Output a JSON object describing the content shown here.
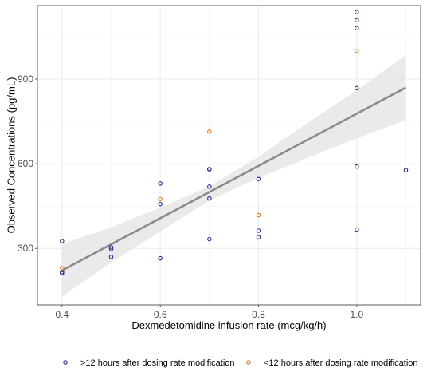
{
  "chart_data": {
    "type": "scatter",
    "title": "",
    "xlabel": "Dexmedetomidine infusion rate (mcg/kg/h)",
    "ylabel": "Observed Concentrations (pg/mL)",
    "xlim": [
      0.35,
      1.13
    ],
    "ylim": [
      100,
      1160
    ],
    "x_ticks": [
      0.4,
      0.6,
      0.8,
      1.0
    ],
    "x_tick_labels": [
      "0.4",
      "0.6",
      "0.8",
      "1.0"
    ],
    "y_ticks": [
      300,
      600,
      900
    ],
    "y_tick_labels": [
      "300",
      "600",
      "900"
    ],
    "grid": true,
    "legend_position": "bottom",
    "series": [
      {
        "name": ">12 hours after dosing rate modification",
        "color": "#2b2b8c",
        "points": [
          [
            0.4,
            326
          ],
          [
            0.4,
            216
          ],
          [
            0.4,
            212
          ],
          [
            0.5,
            304
          ],
          [
            0.5,
            298
          ],
          [
            0.5,
            270
          ],
          [
            0.6,
            530
          ],
          [
            0.6,
            457
          ],
          [
            0.6,
            265
          ],
          [
            0.7,
            581
          ],
          [
            0.7,
            580
          ],
          [
            0.7,
            519
          ],
          [
            0.7,
            477
          ],
          [
            0.7,
            333
          ],
          [
            0.8,
            546
          ],
          [
            0.8,
            363
          ],
          [
            0.8,
            340
          ],
          [
            1.0,
            1137
          ],
          [
            1.0,
            1108
          ],
          [
            1.0,
            1080
          ],
          [
            1.0,
            868
          ],
          [
            1.0,
            590
          ],
          [
            1.0,
            367
          ],
          [
            1.1,
            577
          ]
        ]
      },
      {
        "name": "<12 hours after dosing rate modification",
        "color": "#e07b1a",
        "points": [
          [
            0.4,
            230
          ],
          [
            0.6,
            475
          ],
          [
            0.7,
            714
          ],
          [
            0.8,
            418
          ],
          [
            1.0,
            1000
          ]
        ]
      }
    ],
    "fit_line": {
      "x": [
        0.4,
        1.1
      ],
      "y": [
        222,
        870
      ],
      "color": "#8c8c8c"
    },
    "confidence_band": {
      "x": [
        0.4,
        0.5,
        0.6,
        0.7,
        0.8,
        0.9,
        1.0,
        1.1
      ],
      "lower": [
        130,
        250,
        360,
        470,
        550,
        620,
        690,
        755
      ],
      "upper": [
        315,
        375,
        445,
        520,
        625,
        745,
        860,
        985
      ],
      "color": "#e6e6e6"
    }
  }
}
